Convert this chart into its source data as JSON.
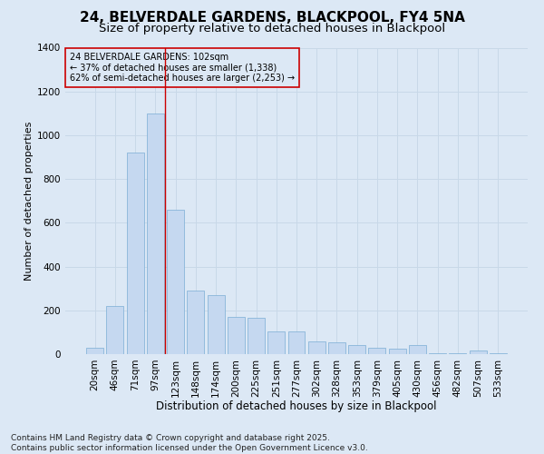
{
  "title": "24, BELVERDALE GARDENS, BLACKPOOL, FY4 5NA",
  "subtitle": "Size of property relative to detached houses in Blackpool",
  "xlabel": "Distribution of detached houses by size in Blackpool",
  "ylabel": "Number of detached properties",
  "categories": [
    "20sqm",
    "46sqm",
    "71sqm",
    "97sqm",
    "123sqm",
    "148sqm",
    "174sqm",
    "200sqm",
    "225sqm",
    "251sqm",
    "277sqm",
    "302sqm",
    "328sqm",
    "353sqm",
    "379sqm",
    "405sqm",
    "430sqm",
    "456sqm",
    "482sqm",
    "507sqm",
    "533sqm"
  ],
  "values": [
    30,
    220,
    920,
    1100,
    660,
    290,
    270,
    170,
    165,
    105,
    105,
    60,
    55,
    40,
    30,
    25,
    40,
    5,
    5,
    18,
    5
  ],
  "bar_color": "#c5d8f0",
  "bar_edge_color": "#7aadd4",
  "grid_color": "#c8d8e8",
  "background_color": "#dce8f5",
  "vline_x": 3.5,
  "vline_color": "#cc0000",
  "annotation_text": "24 BELVERDALE GARDENS: 102sqm\n← 37% of detached houses are smaller (1,338)\n62% of semi-detached houses are larger (2,253) →",
  "annotation_box_color": "#cc0000",
  "ylim": [
    0,
    1400
  ],
  "yticks": [
    0,
    200,
    400,
    600,
    800,
    1000,
    1200,
    1400
  ],
  "footer_text": "Contains HM Land Registry data © Crown copyright and database right 2025.\nContains public sector information licensed under the Open Government Licence v3.0.",
  "title_fontsize": 11,
  "subtitle_fontsize": 9.5,
  "xlabel_fontsize": 8.5,
  "ylabel_fontsize": 8,
  "annotation_fontsize": 7,
  "footer_fontsize": 6.5,
  "tick_fontsize": 7.5
}
